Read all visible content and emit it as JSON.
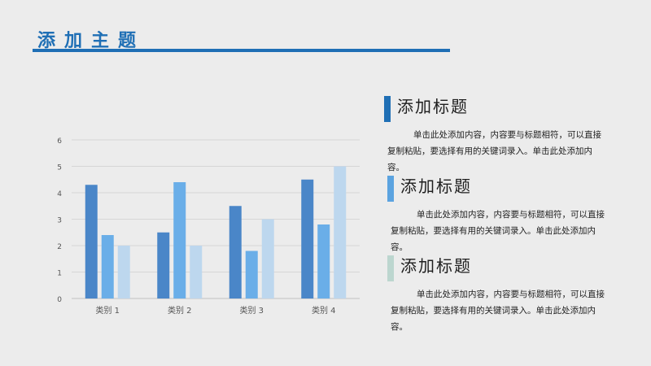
{
  "header": {
    "title": "添加主题"
  },
  "sections": [
    {
      "heading": "添加标题",
      "body": "单击此处添加内容，内容要与标题相符，可以直接复制粘贴，要选择有用的关键词录入。单击此处添加内容。",
      "accent": "#1f6fb5"
    },
    {
      "heading": "添加标题",
      "body": "单击此处添加内容，内容要与标题相符，可以直接复制粘贴，要选择有用的关键词录入。单击此处添加内容。",
      "accent": "#5ba3e0"
    },
    {
      "heading": "添加标题",
      "body": "单击此处添加内容，内容要与标题相符，可以直接复制粘贴，要选择有用的关键词录入。单击此处添加内容。",
      "accent": "#bcd6cf"
    }
  ],
  "chart_data": {
    "type": "bar",
    "categories": [
      "类别 1",
      "类别 2",
      "类别 3",
      "类别 4"
    ],
    "series": [
      {
        "values": [
          4.3,
          2.5,
          3.5,
          4.5
        ],
        "color": "#4a86c8"
      },
      {
        "values": [
          2.4,
          4.4,
          1.8,
          2.8
        ],
        "color": "#6aaee8"
      },
      {
        "values": [
          2.0,
          2.0,
          3.0,
          5.0
        ],
        "color": "#bdd7ee"
      }
    ],
    "yticks": [
      "0",
      "1",
      "2",
      "3",
      "4",
      "5",
      "6"
    ],
    "ylim": [
      0,
      6
    ],
    "grid": true,
    "gridColor": "#d6d6d6",
    "axisColor": "#bfbfbf",
    "labelColor": "#555555"
  }
}
